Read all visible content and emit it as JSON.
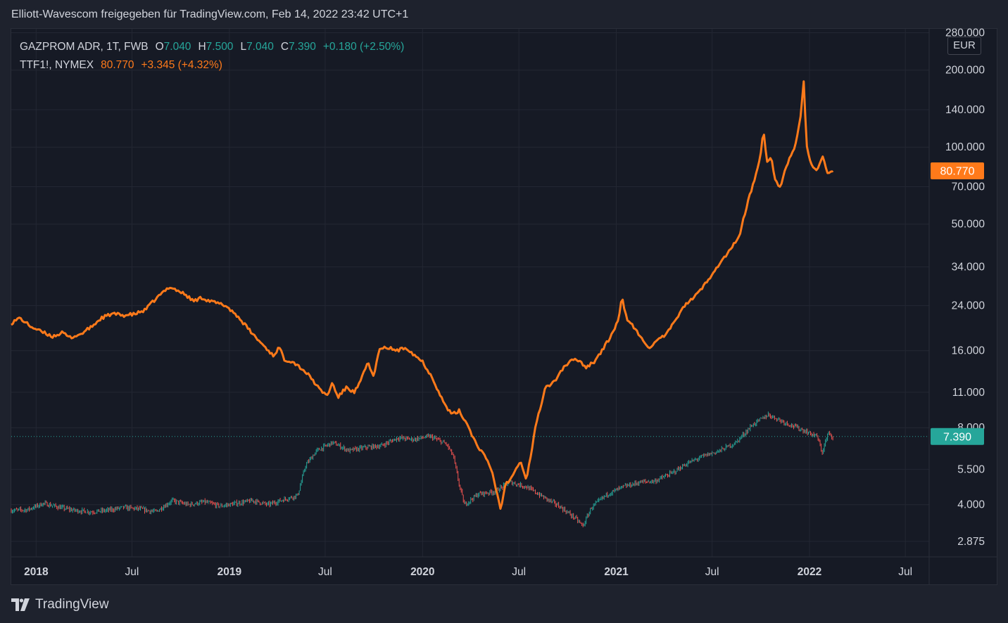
{
  "header": {
    "title": "Elliott-Wavescom freigegeben für TradingView.com, Feb 14, 2022 23:42 UTC+1"
  },
  "legend": {
    "gazprom": {
      "symbol": "GAZPROM ADR, 1T, FWB",
      "open_label": "O",
      "open": "7.040",
      "high_label": "H",
      "high": "7.500",
      "low_label": "L",
      "low": "7.040",
      "close_label": "C",
      "close": "7.390",
      "change": "+0.180 (+2.50%)"
    },
    "ttf": {
      "symbol": "TTF1!, NYMEX",
      "value": "80.770",
      "change": "+3.345 (+4.32%)"
    }
  },
  "currency_button": "EUR",
  "brand": "TradingView",
  "colors": {
    "background": "#161a25",
    "grid": "#232733",
    "ttf_line": "#ff7a1a",
    "up": "#26a69a",
    "down": "#ef5350"
  },
  "chart_data": {
    "type": "line",
    "y_scale": "log",
    "ylim": [
      2.5,
      290
    ],
    "xlim": [
      "2017-11-15",
      "2022-08-15"
    ],
    "y_ticks": [
      {
        "value": 280,
        "label": "280.000"
      },
      {
        "value": 200,
        "label": "200.000"
      },
      {
        "value": 140,
        "label": "140.000"
      },
      {
        "value": 100,
        "label": "100.000"
      },
      {
        "value": 70,
        "label": "70.000"
      },
      {
        "value": 50,
        "label": "50.000"
      },
      {
        "value": 34,
        "label": "34.000"
      },
      {
        "value": 24,
        "label": "24.000"
      },
      {
        "value": 16,
        "label": "16.000"
      },
      {
        "value": 11,
        "label": "11.000"
      },
      {
        "value": 8,
        "label": "8.000"
      },
      {
        "value": 5.5,
        "label": "5.500"
      },
      {
        "value": 4,
        "label": "4.000"
      },
      {
        "value": 2.875,
        "label": "2.875"
      }
    ],
    "x_ticks": [
      {
        "date": "2018-01-01",
        "label": "2018",
        "bold": true
      },
      {
        "date": "2018-07-01",
        "label": "Jul",
        "bold": false
      },
      {
        "date": "2019-01-01",
        "label": "2019",
        "bold": true
      },
      {
        "date": "2019-07-01",
        "label": "Jul",
        "bold": false
      },
      {
        "date": "2020-01-01",
        "label": "2020",
        "bold": true
      },
      {
        "date": "2020-07-01",
        "label": "Jul",
        "bold": false
      },
      {
        "date": "2021-01-01",
        "label": "2021",
        "bold": true
      },
      {
        "date": "2021-07-01",
        "label": "Jul",
        "bold": false
      },
      {
        "date": "2022-01-01",
        "label": "2022",
        "bold": true
      },
      {
        "date": "2022-07-01",
        "label": "Jul",
        "bold": false
      }
    ],
    "price_badges": [
      {
        "series": "TTF1!, NYMEX",
        "label": "80.770",
        "value": 80.77,
        "color": "#ff7a1a"
      },
      {
        "series": "GAZPROM ADR, 1T, FWB",
        "label": "7.390",
        "value": 7.39,
        "color": "#26a69a"
      }
    ],
    "series": [
      {
        "name": "TTF1!, NYMEX",
        "style": "line",
        "color": "#ff7a1a",
        "points": [
          [
            "2017-11-15",
            20.5
          ],
          [
            "2017-12-01",
            21.5
          ],
          [
            "2017-12-20",
            20.0
          ],
          [
            "2018-01-10",
            19.0
          ],
          [
            "2018-02-01",
            18.2
          ],
          [
            "2018-02-20",
            18.8
          ],
          [
            "2018-03-05",
            18.0
          ],
          [
            "2018-03-25",
            18.5
          ],
          [
            "2018-04-15",
            19.8
          ],
          [
            "2018-05-05",
            21.5
          ],
          [
            "2018-05-25",
            22.3
          ],
          [
            "2018-06-15",
            22.0
          ],
          [
            "2018-07-05",
            22.2
          ],
          [
            "2018-07-25",
            23.0
          ],
          [
            "2018-08-15",
            25.5
          ],
          [
            "2018-09-10",
            28.5
          ],
          [
            "2018-09-25",
            27.5
          ],
          [
            "2018-10-10",
            26.5
          ],
          [
            "2018-10-25",
            25.0
          ],
          [
            "2018-11-10",
            25.8
          ],
          [
            "2018-11-25",
            25.0
          ],
          [
            "2018-12-10",
            24.5
          ],
          [
            "2018-12-25",
            24.0
          ],
          [
            "2019-01-15",
            22.0
          ],
          [
            "2019-02-01",
            20.0
          ],
          [
            "2019-02-20",
            18.0
          ],
          [
            "2019-03-10",
            16.5
          ],
          [
            "2019-03-25",
            15.3
          ],
          [
            "2019-04-05",
            16.5
          ],
          [
            "2019-04-15",
            14.8
          ],
          [
            "2019-05-01",
            14.5
          ],
          [
            "2019-05-20",
            13.5
          ],
          [
            "2019-06-05",
            12.5
          ],
          [
            "2019-06-20",
            11.3
          ],
          [
            "2019-07-05",
            10.7
          ],
          [
            "2019-07-15",
            12.0
          ],
          [
            "2019-07-25",
            10.5
          ],
          [
            "2019-08-10",
            11.5
          ],
          [
            "2019-08-25",
            11.0
          ],
          [
            "2019-09-05",
            12.0
          ],
          [
            "2019-09-20",
            14.5
          ],
          [
            "2019-10-01",
            12.5
          ],
          [
            "2019-10-10",
            16.0
          ],
          [
            "2019-10-25",
            16.5
          ],
          [
            "2019-11-15",
            16.0
          ],
          [
            "2019-12-01",
            16.5
          ],
          [
            "2019-12-15",
            15.5
          ],
          [
            "2020-01-01",
            14.5
          ],
          [
            "2020-01-20",
            12.5
          ],
          [
            "2020-02-10",
            10.0
          ],
          [
            "2020-02-25",
            9.0
          ],
          [
            "2020-03-10",
            9.3
          ],
          [
            "2020-03-25",
            8.3
          ],
          [
            "2020-04-10",
            7.0
          ],
          [
            "2020-04-25",
            6.3
          ],
          [
            "2020-05-10",
            5.5
          ],
          [
            "2020-05-20",
            4.5
          ],
          [
            "2020-05-28",
            3.8
          ],
          [
            "2020-06-05",
            4.8
          ],
          [
            "2020-06-15",
            5.0
          ],
          [
            "2020-06-25",
            5.6
          ],
          [
            "2020-07-05",
            5.9
          ],
          [
            "2020-07-15",
            5.0
          ],
          [
            "2020-07-25",
            6.5
          ],
          [
            "2020-08-01",
            8.0
          ],
          [
            "2020-08-10",
            9.5
          ],
          [
            "2020-08-20",
            11.5
          ],
          [
            "2020-09-05",
            12.0
          ],
          [
            "2020-09-20",
            13.5
          ],
          [
            "2020-10-05",
            14.5
          ],
          [
            "2020-10-20",
            14.8
          ],
          [
            "2020-11-05",
            13.8
          ],
          [
            "2020-11-20",
            14.5
          ],
          [
            "2020-12-05",
            16.0
          ],
          [
            "2020-12-20",
            18.0
          ],
          [
            "2021-01-05",
            21.0
          ],
          [
            "2021-01-12",
            26.0
          ],
          [
            "2021-01-20",
            21.5
          ],
          [
            "2021-02-05",
            19.5
          ],
          [
            "2021-02-20",
            17.5
          ],
          [
            "2021-03-05",
            16.5
          ],
          [
            "2021-03-20",
            17.5
          ],
          [
            "2021-04-05",
            18.5
          ],
          [
            "2021-04-20",
            20.5
          ],
          [
            "2021-05-05",
            23.5
          ],
          [
            "2021-05-20",
            25.0
          ],
          [
            "2021-06-05",
            27.0
          ],
          [
            "2021-06-20",
            29.5
          ],
          [
            "2021-07-05",
            33.0
          ],
          [
            "2021-07-20",
            36.0
          ],
          [
            "2021-08-05",
            40.0
          ],
          [
            "2021-08-20",
            44.0
          ],
          [
            "2021-09-01",
            55.0
          ],
          [
            "2021-09-10",
            65.0
          ],
          [
            "2021-09-20",
            75.0
          ],
          [
            "2021-10-01",
            95.0
          ],
          [
            "2021-10-06",
            118.0
          ],
          [
            "2021-10-12",
            88.0
          ],
          [
            "2021-10-20",
            92.0
          ],
          [
            "2021-10-28",
            75.0
          ],
          [
            "2021-11-05",
            68.0
          ],
          [
            "2021-11-15",
            80.0
          ],
          [
            "2021-11-25",
            92.0
          ],
          [
            "2021-12-05",
            100.0
          ],
          [
            "2021-12-15",
            130.0
          ],
          [
            "2021-12-21",
            180.0
          ],
          [
            "2021-12-27",
            100.0
          ],
          [
            "2022-01-05",
            85.0
          ],
          [
            "2022-01-15",
            80.0
          ],
          [
            "2022-01-25",
            92.0
          ],
          [
            "2022-02-05",
            78.0
          ],
          [
            "2022-02-14",
            80.77
          ]
        ]
      },
      {
        "name": "GAZPROM ADR, 1T, FWB",
        "style": "candles",
        "points": [
          [
            "2017-11-15",
            3.8
          ],
          [
            "2017-12-15",
            3.82
          ],
          [
            "2018-01-15",
            4.05
          ],
          [
            "2018-02-15",
            3.9
          ],
          [
            "2018-03-15",
            3.8
          ],
          [
            "2018-04-15",
            3.75
          ],
          [
            "2018-05-15",
            3.8
          ],
          [
            "2018-06-15",
            3.9
          ],
          [
            "2018-07-15",
            3.85
          ],
          [
            "2018-08-15",
            3.75
          ],
          [
            "2018-09-15",
            4.15
          ],
          [
            "2018-10-15",
            4.0
          ],
          [
            "2018-11-15",
            4.1
          ],
          [
            "2018-12-15",
            3.95
          ],
          [
            "2019-01-15",
            4.05
          ],
          [
            "2019-02-15",
            4.15
          ],
          [
            "2019-03-15",
            4.0
          ],
          [
            "2019-04-15",
            4.2
          ],
          [
            "2019-05-10",
            4.35
          ],
          [
            "2019-05-25",
            5.7
          ],
          [
            "2019-06-15",
            6.5
          ],
          [
            "2019-07-15",
            7.0
          ],
          [
            "2019-08-15",
            6.5
          ],
          [
            "2019-09-15",
            6.7
          ],
          [
            "2019-10-15",
            6.8
          ],
          [
            "2019-11-15",
            7.3
          ],
          [
            "2019-12-15",
            7.2
          ],
          [
            "2020-01-15",
            7.4
          ],
          [
            "2020-02-15",
            6.9
          ],
          [
            "2020-02-28",
            6.2
          ],
          [
            "2020-03-10",
            4.8
          ],
          [
            "2020-03-20",
            4.0
          ],
          [
            "2020-04-15",
            4.4
          ],
          [
            "2020-05-15",
            4.5
          ],
          [
            "2020-06-15",
            4.9
          ],
          [
            "2020-07-15",
            4.7
          ],
          [
            "2020-08-15",
            4.3
          ],
          [
            "2020-09-15",
            3.95
          ],
          [
            "2020-10-15",
            3.55
          ],
          [
            "2020-10-30",
            3.3
          ],
          [
            "2020-11-15",
            3.9
          ],
          [
            "2020-12-15",
            4.4
          ],
          [
            "2021-01-15",
            4.7
          ],
          [
            "2021-02-15",
            4.9
          ],
          [
            "2021-03-15",
            4.95
          ],
          [
            "2021-04-15",
            5.3
          ],
          [
            "2021-05-15",
            5.8
          ],
          [
            "2021-06-15",
            6.2
          ],
          [
            "2021-07-15",
            6.5
          ],
          [
            "2021-08-15",
            7.0
          ],
          [
            "2021-09-15",
            8.2
          ],
          [
            "2021-10-15",
            9.0
          ],
          [
            "2021-11-15",
            8.4
          ],
          [
            "2021-12-15",
            7.9
          ],
          [
            "2022-01-15",
            7.4
          ],
          [
            "2022-01-25",
            6.4
          ],
          [
            "2022-02-05",
            7.6
          ],
          [
            "2022-02-14",
            7.39
          ]
        ]
      }
    ]
  }
}
